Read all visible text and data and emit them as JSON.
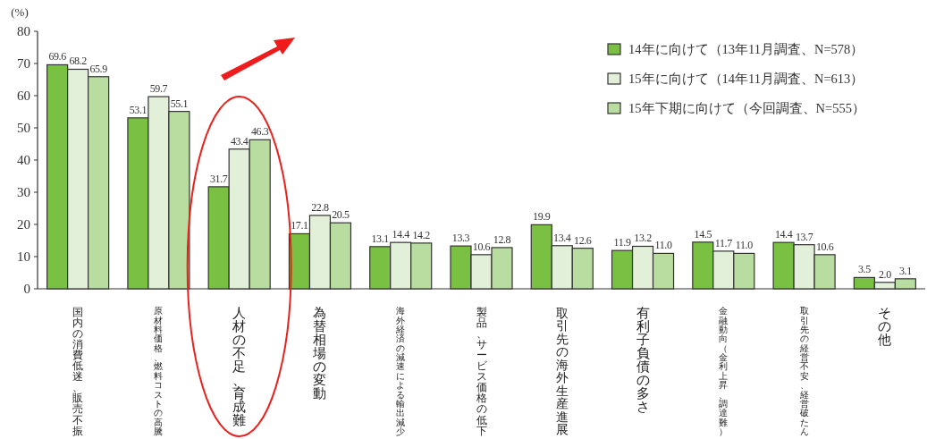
{
  "chart_data": {
    "type": "bar",
    "ylabel": "(%)",
    "categories": [
      "国内の消費低迷、販売不振",
      "原材料価格、燃料コストの高騰",
      "人材の不足、育成難",
      "為替相場の変動",
      "海外経済の減速による輸出減少",
      "製品、サービス価格の低下",
      "取引先の海外生産進展",
      "有利子負債の多さ",
      "金融動向（金利上昇、調達難）",
      "取引先の経営不安、経営破たん",
      "その他"
    ],
    "series": [
      {
        "name": "14年に向けて（13年11月調査、N=578）",
        "color": "#7ac143",
        "values": [
          69.6,
          53.1,
          31.7,
          17.1,
          13.1,
          13.3,
          19.9,
          11.9,
          14.5,
          14.4,
          3.5
        ],
        "value_labels": [
          "69.6",
          "53.1",
          "31.7",
          "17.1",
          "13.1",
          "13.3",
          "19.9",
          "11.9",
          "14.5",
          "14.4",
          "3.5"
        ]
      },
      {
        "name": "15年に向けて（14年11月調査、N=613）",
        "color": "#e2efd9",
        "values": [
          68.2,
          59.7,
          43.4,
          22.8,
          14.4,
          10.6,
          13.4,
          13.2,
          11.7,
          13.7,
          2.0
        ],
        "value_labels": [
          "68.2",
          "59.7",
          "43.4",
          "22.8",
          "14.4",
          "10.6",
          "13.4",
          "13.2",
          "11.7",
          "13.7",
          "2.0"
        ]
      },
      {
        "name": "15年下期に向けて（今回調査、N=555）",
        "color": "#b9dca0",
        "values": [
          65.9,
          55.1,
          46.3,
          20.5,
          14.2,
          12.8,
          12.6,
          11.0,
          11.0,
          10.6,
          3.1
        ],
        "value_labels": [
          "65.9",
          "55.1",
          "46.3",
          "20.5",
          "14.2",
          "12.8",
          "12.6",
          "11.0",
          "11.0",
          "10.6",
          "3.1"
        ]
      }
    ],
    "ylim": [
      0,
      80
    ],
    "yticks": [
      0,
      10,
      20,
      30,
      40,
      50,
      60,
      70,
      80
    ],
    "data_labels": true,
    "legend": "top right"
  }
}
